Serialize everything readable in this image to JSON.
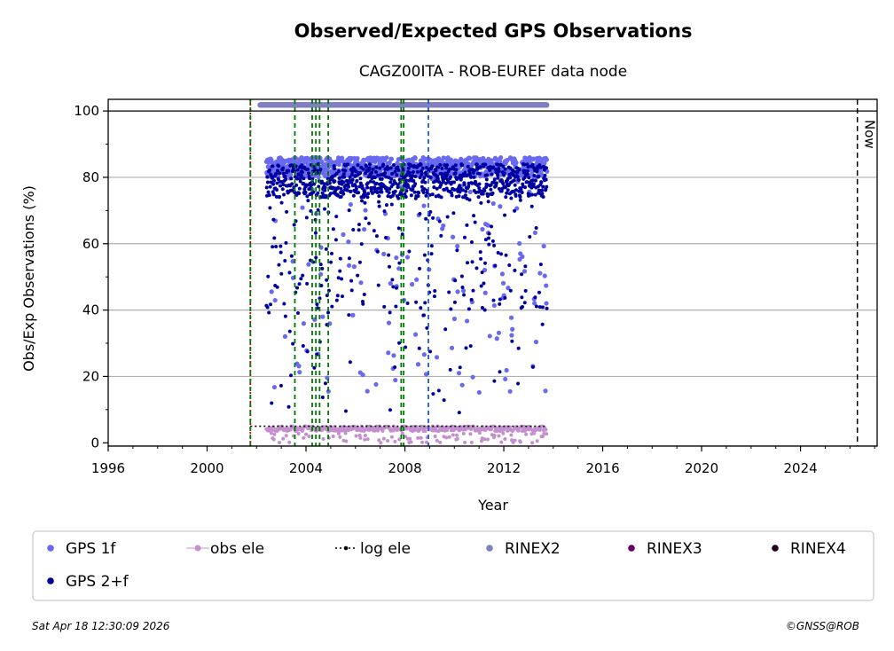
{
  "chart_data": {
    "type": "scatter",
    "title": "Observed/Expected GPS Observations",
    "subtitle": "CAGZ00ITA - ROB-EUREF data node",
    "xlabel": "Year",
    "ylabel": "Obs/Exp Observations (%)",
    "xlim": [
      1996,
      2027.1
    ],
    "ylim": [
      -1,
      103.5
    ],
    "x_ticks": [
      "1996",
      "2000",
      "2004",
      "2008",
      "2012",
      "2016",
      "2020",
      "2024"
    ],
    "y_ticks": [
      "0",
      "20",
      "40",
      "60",
      "80",
      "100"
    ],
    "reference_line_y": 100,
    "now": {
      "x": 2026.3,
      "label": "Now"
    },
    "data_range": [
      2002.4,
      2013.75
    ],
    "vertical_markers": [
      {
        "x": 2001.75,
        "color": "#cc0000",
        "style": "dotted"
      },
      {
        "x": 2001.75,
        "color": "#007a00",
        "style": "dashed"
      },
      {
        "x": 2003.55,
        "color": "#007a00",
        "style": "dashed"
      },
      {
        "x": 2004.25,
        "color": "#007a00",
        "style": "dashed"
      },
      {
        "x": 2004.4,
        "color": "#007a00",
        "style": "dashed"
      },
      {
        "x": 2004.55,
        "color": "#007a00",
        "style": "dashed"
      },
      {
        "x": 2004.9,
        "color": "#007a00",
        "style": "dashed"
      },
      {
        "x": 2007.85,
        "color": "#007a00",
        "style": "dashed"
      },
      {
        "x": 2007.95,
        "color": "#007a00",
        "style": "dashed"
      },
      {
        "x": 2008.95,
        "color": "#1f5fbf",
        "style": "dashed"
      }
    ],
    "series": [
      {
        "name": "GPS 1f",
        "color": "#6a6af0",
        "typical_range": [
          80,
          86
        ]
      },
      {
        "name": "obs ele",
        "color": "#c48fcf",
        "typical_range": [
          0,
          5
        ]
      },
      {
        "name": "log ele",
        "color": "#000000",
        "value": 5,
        "x_range": [
          2001.75,
          2013.75
        ]
      },
      {
        "name": "RINEX2",
        "color": "#8080c0",
        "value": 101.8
      },
      {
        "name": "RINEX3",
        "color": "#660066"
      },
      {
        "name": "RINEX4",
        "color": "#200020"
      },
      {
        "name": "GPS 2+f",
        "color": "#0000a0",
        "typical_range": [
          70,
          85
        ]
      }
    ],
    "legend_position": "bottom",
    "footer_left": "Sat Apr 18 12:30:09 2026",
    "footer_right": "©GNSS@ROB"
  }
}
